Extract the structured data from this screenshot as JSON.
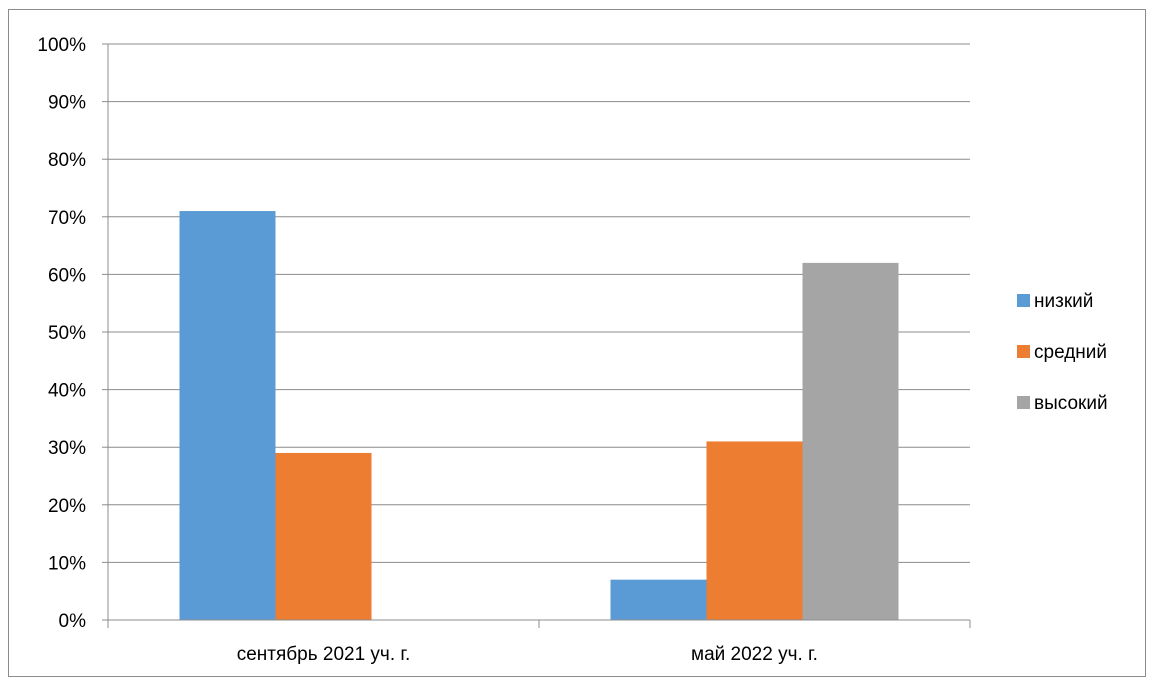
{
  "chart_data": {
    "type": "bar",
    "categories": [
      "сентябрь 2021 уч. г.",
      "май 2022 уч. г."
    ],
    "series": [
      {
        "name": "низкий",
        "values": [
          71,
          7
        ],
        "color": "#5b9bd5"
      },
      {
        "name": "средний",
        "values": [
          29,
          31
        ],
        "color": "#ed7d31"
      },
      {
        "name": "высокий",
        "values": [
          0,
          62
        ],
        "color": "#a5a5a5"
      }
    ],
    "y_ticks": [
      "0%",
      "10%",
      "20%",
      "30%",
      "40%",
      "50%",
      "60%",
      "70%",
      "80%",
      "90%",
      "100%"
    ],
    "ylim": [
      0,
      100
    ],
    "y_unit": "%",
    "grid": true,
    "legend_position": "right",
    "title": "",
    "xlabel": "",
    "ylabel": ""
  }
}
